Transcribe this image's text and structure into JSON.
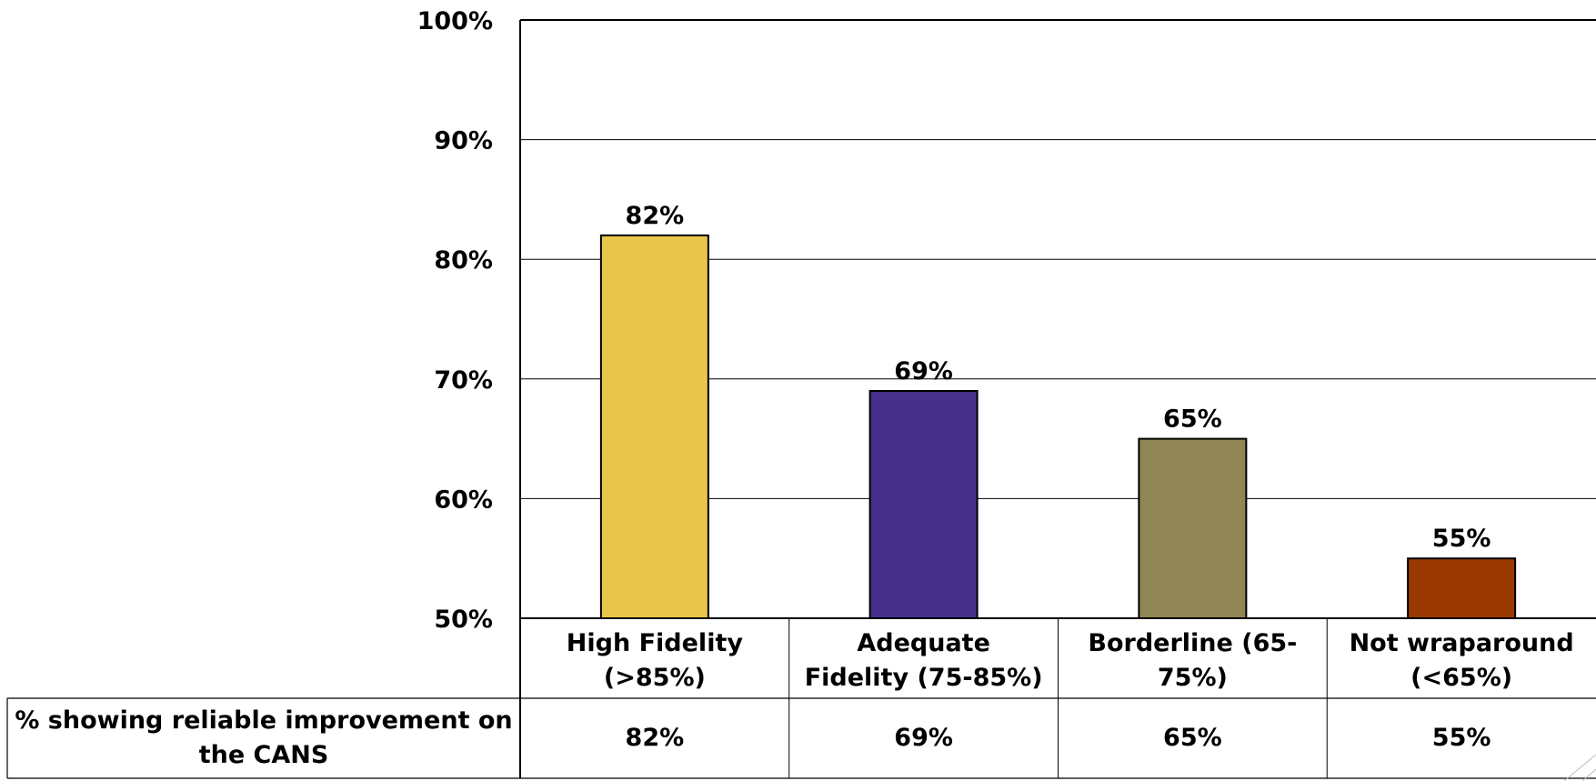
{
  "chart_data": {
    "type": "bar",
    "categories": [
      [
        "High Fidelity",
        "(>85%)"
      ],
      [
        "Adequate",
        "Fidelity (75-85%)"
      ],
      [
        "Borderline (65-",
        "75%)"
      ],
      [
        "Not wraparound",
        "(<65%)"
      ]
    ],
    "series": [
      {
        "name": "% showing reliable improvement on the CANS",
        "name_lines": [
          "% showing reliable improvement on",
          "the CANS"
        ],
        "values": [
          82,
          69,
          65,
          55
        ],
        "value_labels": [
          "82%",
          "69%",
          "65%",
          "55%"
        ],
        "colors": [
          "#E8C64A",
          "#45318C",
          "#908555",
          "#9B3A00"
        ]
      }
    ],
    "ylim": [
      50,
      100
    ],
    "yticks": [
      50,
      60,
      70,
      80,
      90,
      100
    ],
    "ytick_labels": [
      "50%",
      "60%",
      "70%",
      "80%",
      "90%",
      "100%"
    ],
    "grid": true,
    "data_table": true
  }
}
